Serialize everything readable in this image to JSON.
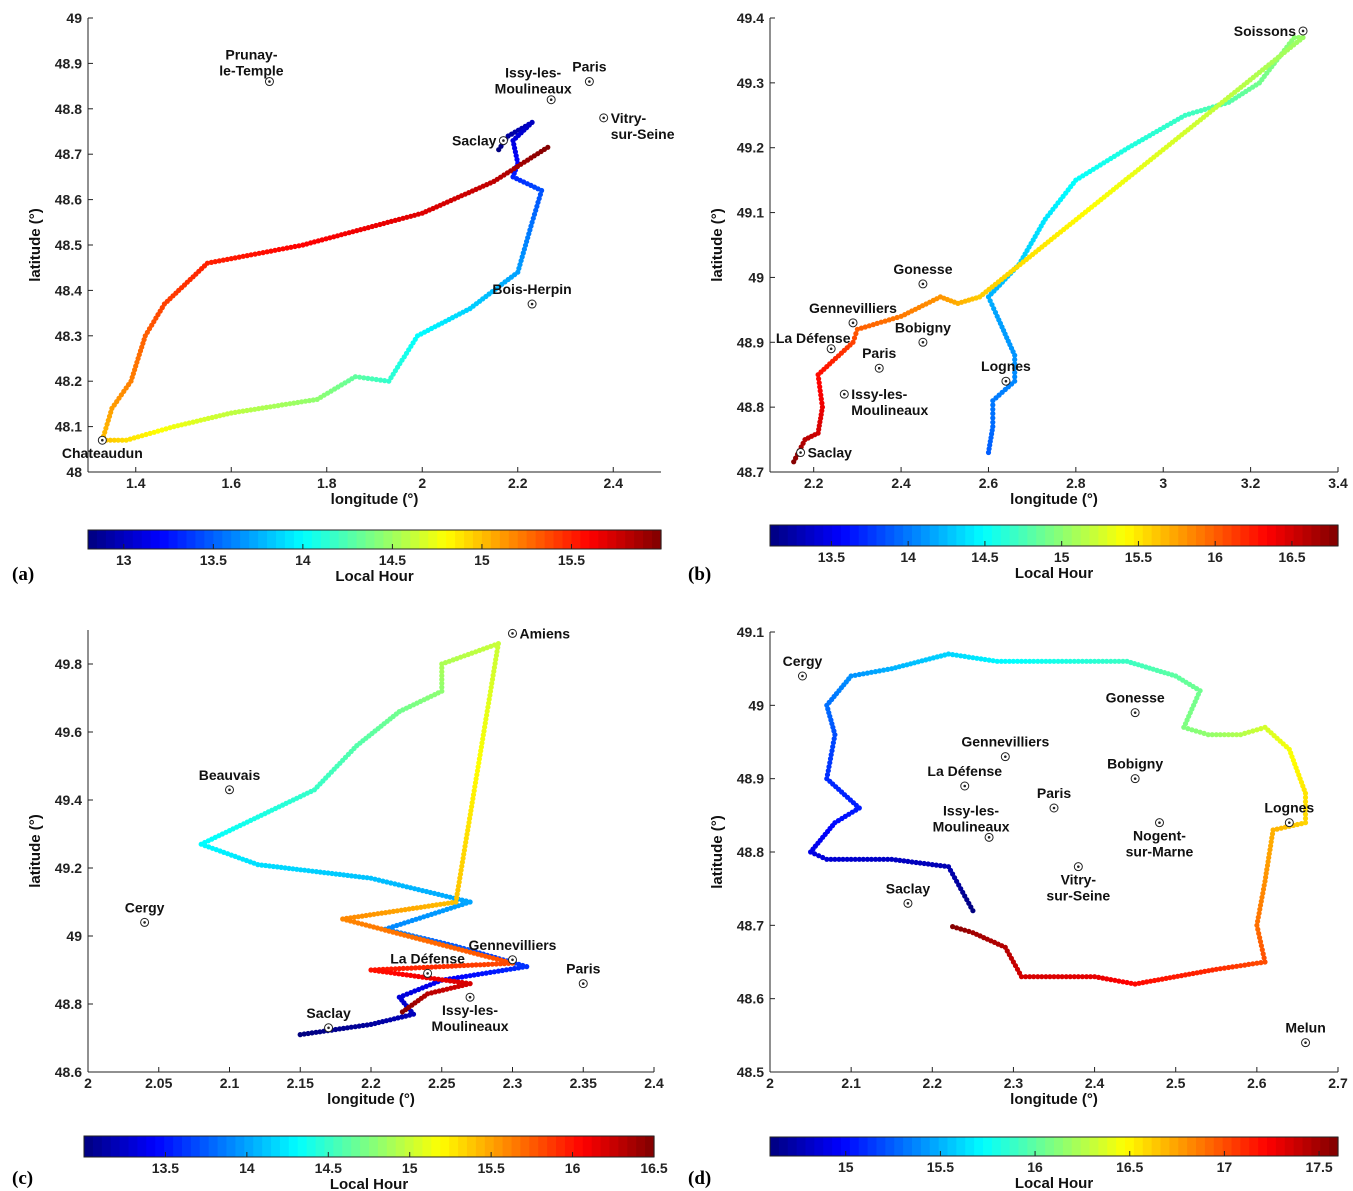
{
  "chart_data": [
    {
      "type": "scatter",
      "panel": "(a)",
      "xlabel": "longitude (°)",
      "ylabel": "latitude (°)",
      "xlim": [
        1.3,
        2.5
      ],
      "ylim": [
        48,
        49
      ],
      "xticks": [
        1.4,
        1.6,
        1.8,
        2,
        2.2,
        2.4
      ],
      "yticks": [
        48,
        48.1,
        48.2,
        48.3,
        48.4,
        48.5,
        48.6,
        48.7,
        48.8,
        48.9,
        49
      ],
      "colorbar": {
        "label": "Local Hour",
        "range": [
          12.8,
          16.0
        ],
        "ticks": [
          13,
          13.5,
          14,
          14.5,
          15,
          15.5
        ]
      },
      "cities": [
        {
          "name": "Prunay-\nle-Temple",
          "lon": 1.68,
          "lat": 48.86,
          "anchor": "tl"
        },
        {
          "name": "Paris",
          "lon": 2.35,
          "lat": 48.86,
          "anchor": "top"
        },
        {
          "name": "Issy-les-\nMoulineaux",
          "lon": 2.27,
          "lat": 48.82,
          "anchor": "tl"
        },
        {
          "name": "Vitry-\nsur-Seine",
          "lon": 2.38,
          "lat": 48.78,
          "anchor": "right"
        },
        {
          "name": "Saclay",
          "lon": 2.17,
          "lat": 48.73,
          "anchor": "left"
        },
        {
          "name": "Bois-Herpin",
          "lon": 2.23,
          "lat": 48.37,
          "anchor": "top"
        },
        {
          "name": "Chateaudun",
          "lon": 1.33,
          "lat": 48.07,
          "anchor": "below"
        }
      ],
      "track": [
        [
          2.16,
          48.71,
          12.8
        ],
        [
          2.18,
          48.74,
          12.9
        ],
        [
          2.23,
          48.77,
          13.0
        ],
        [
          2.19,
          48.73,
          13.1
        ],
        [
          2.2,
          48.68,
          13.2
        ],
        [
          2.19,
          48.65,
          13.3
        ],
        [
          2.25,
          48.62,
          13.45
        ],
        [
          2.23,
          48.55,
          13.55
        ],
        [
          2.2,
          48.44,
          13.7
        ],
        [
          2.1,
          48.36,
          13.85
        ],
        [
          1.99,
          48.3,
          14.0
        ],
        [
          1.93,
          48.2,
          14.15
        ],
        [
          1.86,
          48.21,
          14.3
        ],
        [
          1.78,
          48.16,
          14.45
        ],
        [
          1.6,
          48.13,
          14.6
        ],
        [
          1.48,
          48.1,
          14.75
        ],
        [
          1.38,
          48.07,
          14.9
        ],
        [
          1.33,
          48.07,
          15.0
        ],
        [
          1.35,
          48.14,
          15.1
        ],
        [
          1.39,
          48.2,
          15.2
        ],
        [
          1.42,
          48.3,
          15.3
        ],
        [
          1.46,
          48.37,
          15.4
        ],
        [
          1.55,
          48.46,
          15.5
        ],
        [
          1.75,
          48.5,
          15.6
        ],
        [
          2.0,
          48.57,
          15.7
        ],
        [
          2.15,
          48.64,
          15.8
        ],
        [
          2.27,
          48.72,
          16.0
        ]
      ]
    },
    {
      "type": "scatter",
      "panel": "(b)",
      "xlabel": "longitude (°)",
      "ylabel": "latitude (°)",
      "xlim": [
        2.1,
        3.4
      ],
      "ylim": [
        48.7,
        49.4
      ],
      "xticks": [
        2.2,
        2.4,
        2.6,
        2.8,
        3,
        3.2,
        3.4
      ],
      "yticks": [
        48.7,
        48.8,
        48.9,
        49,
        49.1,
        49.2,
        49.3,
        49.4
      ],
      "colorbar": {
        "label": "Local Hour",
        "range": [
          13.1,
          16.8
        ],
        "ticks": [
          13.5,
          14,
          14.5,
          15,
          15.5,
          16,
          16.5
        ]
      },
      "cities": [
        {
          "name": "Soissons",
          "lon": 3.32,
          "lat": 49.38,
          "anchor": "left"
        },
        {
          "name": "Gonesse",
          "lon": 2.45,
          "lat": 48.99,
          "anchor": "top"
        },
        {
          "name": "Gennevilliers",
          "lon": 2.29,
          "lat": 48.93,
          "anchor": "top"
        },
        {
          "name": "La Défense",
          "lon": 2.24,
          "lat": 48.89,
          "anchor": "tl"
        },
        {
          "name": "Bobigny",
          "lon": 2.45,
          "lat": 48.9,
          "anchor": "top"
        },
        {
          "name": "Paris",
          "lon": 2.35,
          "lat": 48.86,
          "anchor": "top"
        },
        {
          "name": "Lognes",
          "lon": 2.64,
          "lat": 48.84,
          "anchor": "top"
        },
        {
          "name": "Issy-les-\nMoulineaux",
          "lon": 2.27,
          "lat": 48.82,
          "anchor": "right"
        },
        {
          "name": "Saclay",
          "lon": 2.17,
          "lat": 48.73,
          "anchor": "right"
        }
      ],
      "track": [
        [
          2.6,
          48.73,
          13.9
        ],
        [
          2.61,
          48.77,
          13.95
        ],
        [
          2.61,
          48.81,
          14.0
        ],
        [
          2.66,
          48.84,
          14.05
        ],
        [
          2.66,
          48.88,
          14.1
        ],
        [
          2.62,
          48.94,
          14.15
        ],
        [
          2.6,
          48.97,
          14.2
        ],
        [
          2.67,
          49.02,
          14.3
        ],
        [
          2.73,
          49.09,
          14.4
        ],
        [
          2.8,
          49.15,
          14.5
        ],
        [
          2.92,
          49.2,
          14.6
        ],
        [
          3.05,
          49.25,
          14.7
        ],
        [
          3.15,
          49.27,
          14.8
        ],
        [
          3.22,
          49.3,
          14.9
        ],
        [
          3.3,
          49.37,
          15.0
        ],
        [
          3.32,
          49.37,
          15.05
        ],
        [
          2.58,
          48.97,
          15.6
        ],
        [
          2.53,
          48.96,
          15.7
        ],
        [
          2.49,
          48.97,
          15.8
        ],
        [
          2.4,
          48.94,
          15.9
        ],
        [
          2.3,
          48.92,
          16.0
        ],
        [
          2.29,
          48.9,
          16.1
        ],
        [
          2.21,
          48.85,
          16.3
        ],
        [
          2.22,
          48.8,
          16.4
        ],
        [
          2.21,
          48.76,
          16.5
        ],
        [
          2.18,
          48.75,
          16.6
        ],
        [
          2.15,
          48.71,
          16.8
        ]
      ]
    },
    {
      "type": "scatter",
      "panel": "(c)",
      "xlabel": "longitude (°)",
      "ylabel": "latitude (°)",
      "xlim": [
        2.0,
        2.4
      ],
      "ylim": [
        48.6,
        49.9
      ],
      "xticks": [
        2,
        2.05,
        2.1,
        2.15,
        2.2,
        2.25,
        2.3,
        2.35,
        2.4
      ],
      "yticks": [
        48.6,
        48.8,
        49,
        49.2,
        49.4,
        49.6,
        49.8
      ],
      "colorbar": {
        "label": "Local Hour",
        "range": [
          13.0,
          16.5
        ],
        "ticks": [
          13.5,
          14,
          14.5,
          15,
          15.5,
          16,
          16.5
        ]
      },
      "cities": [
        {
          "name": "Amiens",
          "lon": 2.3,
          "lat": 49.89,
          "anchor": "right"
        },
        {
          "name": "Beauvais",
          "lon": 2.1,
          "lat": 49.43,
          "anchor": "top"
        },
        {
          "name": "Cergy",
          "lon": 2.04,
          "lat": 49.04,
          "anchor": "top"
        },
        {
          "name": "Gennevilliers",
          "lon": 2.3,
          "lat": 48.93,
          "anchor": "top"
        },
        {
          "name": "La Défense",
          "lon": 2.24,
          "lat": 48.89,
          "anchor": "top"
        },
        {
          "name": "Paris",
          "lon": 2.35,
          "lat": 48.86,
          "anchor": "top"
        },
        {
          "name": "Issy-les-\nMoulineaux",
          "lon": 2.27,
          "lat": 48.82,
          "anchor": "below"
        },
        {
          "name": "Saclay",
          "lon": 2.17,
          "lat": 48.73,
          "anchor": "top"
        }
      ],
      "track": [
        [
          2.15,
          48.71,
          13.0
        ],
        [
          2.2,
          48.74,
          13.1
        ],
        [
          2.23,
          48.77,
          13.2
        ],
        [
          2.22,
          48.82,
          13.3
        ],
        [
          2.25,
          48.87,
          13.4
        ],
        [
          2.31,
          48.91,
          13.6
        ],
        [
          2.26,
          48.97,
          13.75
        ],
        [
          2.21,
          49.02,
          13.9
        ],
        [
          2.27,
          49.1,
          14.0
        ],
        [
          2.2,
          49.17,
          14.1
        ],
        [
          2.12,
          49.21,
          14.2
        ],
        [
          2.08,
          49.27,
          14.3
        ],
        [
          2.12,
          49.35,
          14.4
        ],
        [
          2.16,
          49.43,
          14.5
        ],
        [
          2.19,
          49.56,
          14.6
        ],
        [
          2.22,
          49.66,
          14.7
        ],
        [
          2.25,
          49.72,
          14.8
        ],
        [
          2.25,
          49.8,
          14.9
        ],
        [
          2.29,
          49.86,
          15.0
        ],
        [
          2.26,
          49.1,
          15.4
        ],
        [
          2.18,
          49.05,
          15.6
        ],
        [
          2.3,
          48.92,
          15.8
        ],
        [
          2.2,
          48.9,
          16.0
        ],
        [
          2.27,
          48.86,
          16.2
        ],
        [
          2.24,
          48.83,
          16.3
        ],
        [
          2.22,
          48.77,
          16.5
        ]
      ]
    },
    {
      "type": "scatter",
      "panel": "(d)",
      "xlabel": "longitude (°)",
      "ylabel": "latitude (°)",
      "xlim": [
        2.0,
        2.7
      ],
      "ylim": [
        48.5,
        49.1
      ],
      "xticks": [
        2,
        2.1,
        2.2,
        2.3,
        2.4,
        2.5,
        2.6,
        2.7
      ],
      "yticks": [
        48.5,
        48.6,
        48.7,
        48.8,
        48.9,
        49,
        49.1
      ],
      "colorbar": {
        "label": "Local Hour",
        "range": [
          14.6,
          17.6
        ],
        "ticks": [
          15,
          15.5,
          16,
          16.5,
          17,
          17.5
        ]
      },
      "cities": [
        {
          "name": "Cergy",
          "lon": 2.04,
          "lat": 49.04,
          "anchor": "top"
        },
        {
          "name": "Gonesse",
          "lon": 2.45,
          "lat": 48.99,
          "anchor": "top"
        },
        {
          "name": "Gennevilliers",
          "lon": 2.29,
          "lat": 48.93,
          "anchor": "top"
        },
        {
          "name": "Bobigny",
          "lon": 2.45,
          "lat": 48.9,
          "anchor": "top"
        },
        {
          "name": "La Défense",
          "lon": 2.24,
          "lat": 48.89,
          "anchor": "top"
        },
        {
          "name": "Paris",
          "lon": 2.35,
          "lat": 48.86,
          "anchor": "top"
        },
        {
          "name": "Lognes",
          "lon": 2.64,
          "lat": 48.84,
          "anchor": "top"
        },
        {
          "name": "Nogent-\nsur-Marne",
          "lon": 2.48,
          "lat": 48.84,
          "anchor": "below"
        },
        {
          "name": "Issy-les-\nMoulineaux",
          "lon": 2.27,
          "lat": 48.82,
          "anchor": "tl"
        },
        {
          "name": "Vitry-\nsur-Seine",
          "lon": 2.38,
          "lat": 48.78,
          "anchor": "below"
        },
        {
          "name": "Saclay",
          "lon": 2.17,
          "lat": 48.73,
          "anchor": "top"
        },
        {
          "name": "Melun",
          "lon": 2.66,
          "lat": 48.54,
          "anchor": "top"
        }
      ],
      "track": [
        [
          2.25,
          48.72,
          14.6
        ],
        [
          2.23,
          48.76,
          14.7
        ],
        [
          2.22,
          48.78,
          14.75
        ],
        [
          2.15,
          48.79,
          14.8
        ],
        [
          2.07,
          48.79,
          14.85
        ],
        [
          2.05,
          48.8,
          14.9
        ],
        [
          2.08,
          48.84,
          15.0
        ],
        [
          2.11,
          48.86,
          15.05
        ],
        [
          2.07,
          48.9,
          15.1
        ],
        [
          2.08,
          48.96,
          15.2
        ],
        [
          2.07,
          49.0,
          15.3
        ],
        [
          2.1,
          49.04,
          15.4
        ],
        [
          2.15,
          49.05,
          15.5
        ],
        [
          2.22,
          49.07,
          15.6
        ],
        [
          2.28,
          49.06,
          15.7
        ],
        [
          2.36,
          49.06,
          15.8
        ],
        [
          2.44,
          49.06,
          15.9
        ],
        [
          2.5,
          49.04,
          16.0
        ],
        [
          2.53,
          49.02,
          16.05
        ],
        [
          2.51,
          48.97,
          16.1
        ],
        [
          2.54,
          48.96,
          16.15
        ],
        [
          2.58,
          48.96,
          16.25
        ],
        [
          2.61,
          48.97,
          16.35
        ],
        [
          2.64,
          48.94,
          16.45
        ],
        [
          2.66,
          48.88,
          16.55
        ],
        [
          2.66,
          48.84,
          16.6
        ],
        [
          2.62,
          48.83,
          16.7
        ],
        [
          2.61,
          48.76,
          16.8
        ],
        [
          2.6,
          48.7,
          16.9
        ],
        [
          2.61,
          48.65,
          17.0
        ],
        [
          2.55,
          48.64,
          17.1
        ],
        [
          2.45,
          48.62,
          17.2
        ],
        [
          2.4,
          48.63,
          17.3
        ],
        [
          2.31,
          48.63,
          17.35
        ],
        [
          2.29,
          48.67,
          17.45
        ],
        [
          2.25,
          48.69,
          17.5
        ],
        [
          2.22,
          48.7,
          17.6
        ]
      ]
    }
  ]
}
